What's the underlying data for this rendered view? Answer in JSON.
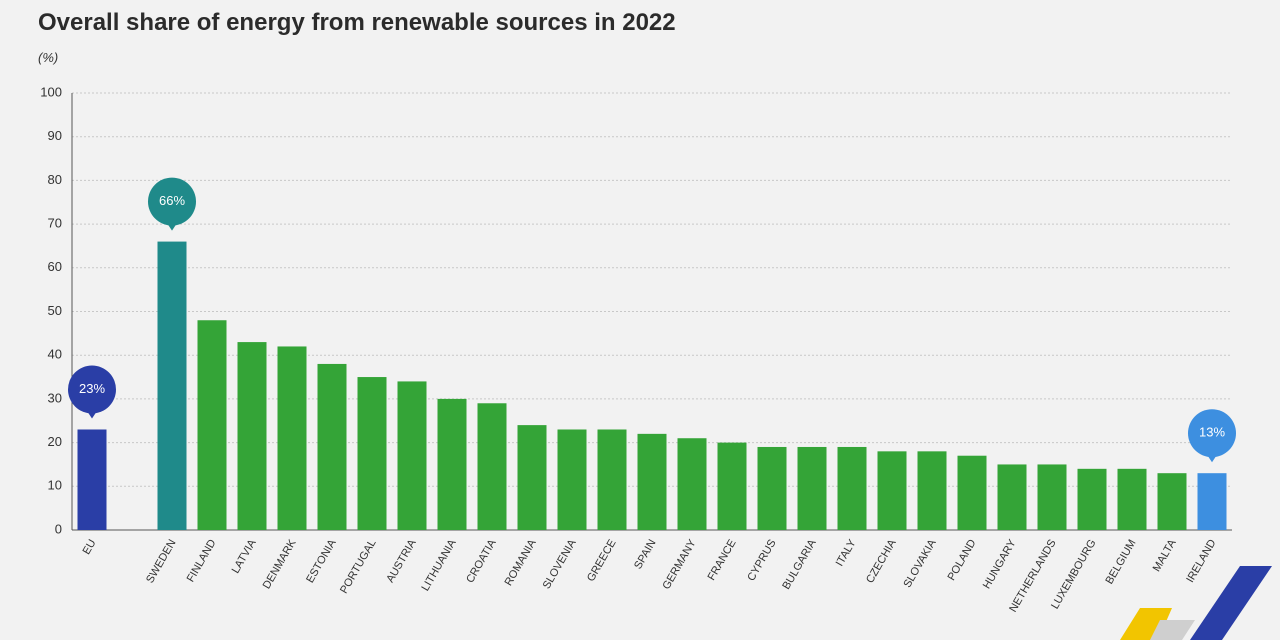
{
  "chart_data": {
    "type": "bar",
    "title": "Overall share of energy from renewable sources in 2022",
    "y_label": "(%)",
    "categories": [
      "EU",
      null,
      "Sweden",
      "Finland",
      "Latvia",
      "Denmark",
      "Estonia",
      "Portugal",
      "Austria",
      "Lithuania",
      "Croatia",
      "Romania",
      "Slovenia",
      "Greece",
      "Spain",
      "Germany",
      "France",
      "Cyprus",
      "Bulgaria",
      "Italy",
      "Czechia",
      "Slovakia",
      "Poland",
      "Hungary",
      "Netherlands",
      "Luxembourg",
      "Belgium",
      "Malta",
      "Ireland"
    ],
    "values": [
      23,
      null,
      66,
      48,
      43,
      42,
      38,
      35,
      34,
      30,
      29,
      24,
      23,
      23,
      22,
      21,
      20,
      19,
      19,
      19,
      18,
      18,
      17,
      15,
      15,
      14,
      14,
      13,
      13
    ],
    "value_labels": [
      "23%",
      null,
      "66%",
      null,
      null,
      null,
      null,
      null,
      null,
      null,
      null,
      null,
      null,
      null,
      null,
      null,
      null,
      null,
      null,
      null,
      null,
      null,
      null,
      null,
      null,
      null,
      null,
      null,
      "13%"
    ],
    "colors": [
      "#2a3ea6",
      null,
      "#1f8a8a",
      "#34a437",
      "#34a437",
      "#34a437",
      "#34a437",
      "#34a437",
      "#34a437",
      "#34a437",
      "#34a437",
      "#34a437",
      "#34a437",
      "#34a437",
      "#34a437",
      "#34a437",
      "#34a437",
      "#34a437",
      "#34a437",
      "#34a437",
      "#34a437",
      "#34a437",
      "#34a437",
      "#34a437",
      "#34a437",
      "#34a437",
      "#34a437",
      "#34a437",
      "#3d8fe0"
    ],
    "ylim": [
      0,
      100
    ],
    "yticks": [
      0,
      10,
      20,
      30,
      40,
      50,
      60,
      70,
      80,
      90,
      100
    ],
    "grid": true
  }
}
